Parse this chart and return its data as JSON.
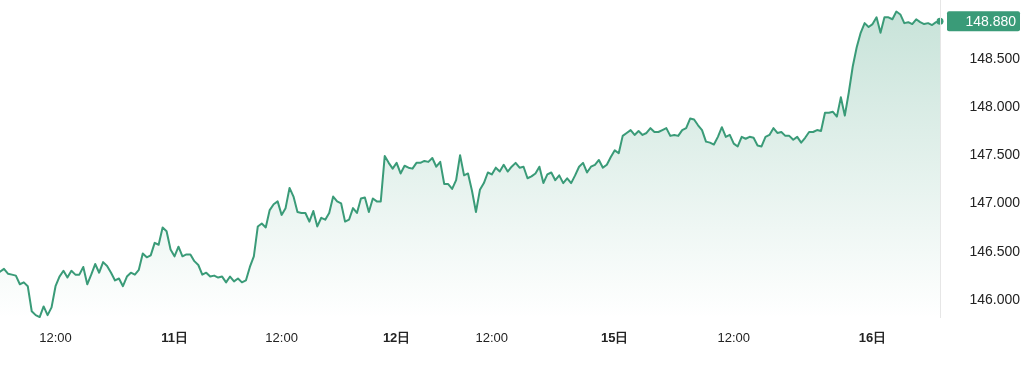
{
  "chart_data": {
    "type": "area",
    "ylim": [
      145.8,
      149.1
    ],
    "categories": [
      null,
      null,
      null,
      null,
      null,
      null,
      null,
      null,
      null,
      null,
      null,
      null,
      null,
      null,
      "12:00",
      null,
      null,
      null,
      null,
      null,
      null,
      null,
      null,
      null,
      null,
      null,
      null,
      null,
      null,
      null,
      null,
      null,
      null,
      null,
      null,
      null,
      null,
      null,
      null,
      null,
      null,
      null,
      null,
      null,
      "11日",
      null,
      null,
      null,
      null,
      null,
      null,
      null,
      null,
      null,
      null,
      null,
      null,
      null,
      null,
      null,
      null,
      null,
      null,
      null,
      null,
      null,
      null,
      null,
      null,
      null,
      null,
      "12:00",
      null,
      null,
      null,
      null,
      null,
      null,
      null,
      null,
      null,
      null,
      null,
      null,
      null,
      null,
      null,
      null,
      null,
      null,
      null,
      null,
      null,
      null,
      null,
      null,
      null,
      null,
      null,
      null,
      "12日",
      null,
      null,
      null,
      null,
      null,
      null,
      null,
      null,
      null,
      null,
      null,
      null,
      null,
      null,
      null,
      null,
      null,
      null,
      null,
      null,
      null,
      null,
      null,
      "12:00",
      null,
      null,
      null,
      null,
      null,
      null,
      null,
      null,
      null,
      null,
      null,
      null,
      null,
      null,
      null,
      null,
      null,
      null,
      null,
      null,
      null,
      null,
      null,
      null,
      null,
      null,
      null,
      null,
      null,
      null,
      "15日",
      null,
      null,
      null,
      null,
      null,
      null,
      null,
      null,
      null,
      null,
      null,
      null,
      null,
      null,
      null,
      null,
      null,
      null,
      null,
      null,
      null,
      null,
      null,
      null,
      null,
      null,
      null,
      null,
      null,
      "12:00",
      null,
      null,
      null,
      null,
      null,
      null,
      null,
      null,
      null,
      null,
      null,
      null,
      null,
      null,
      null,
      null,
      null,
      null,
      null,
      null,
      null,
      null,
      null,
      null,
      null,
      null,
      null,
      null,
      null,
      null,
      null,
      null,
      null,
      null,
      "16日",
      null,
      null,
      null,
      null,
      null,
      null,
      null,
      null,
      null,
      null,
      null,
      null,
      null,
      null,
      null,
      null,
      null
    ],
    "yticks": [
      {
        "value": 146,
        "label": "146.000"
      },
      {
        "value": 146.5,
        "label": "146.500"
      },
      {
        "value": 147,
        "label": "147.000"
      },
      {
        "value": 147.5,
        "label": "147.500"
      },
      {
        "value": 148,
        "label": "148.000"
      },
      {
        "value": 148.5,
        "label": "148.500"
      }
    ],
    "annotations": [
      "148.880"
    ],
    "series": [
      {
        "color": "#3a9b78",
        "values": [
          146.28,
          146.31,
          146.26,
          146.25,
          146.24,
          146.15,
          146.17,
          146.13,
          145.87,
          145.83,
          145.81,
          145.92,
          145.83,
          145.91,
          146.13,
          146.23,
          146.29,
          146.22,
          146.29,
          146.25,
          146.25,
          146.33,
          146.15,
          146.25,
          146.36,
          146.27,
          146.38,
          146.34,
          146.27,
          146.19,
          146.21,
          146.13,
          146.23,
          146.27,
          146.25,
          146.3,
          146.47,
          146.43,
          146.45,
          146.58,
          146.56,
          146.74,
          146.7,
          146.51,
          146.44,
          146.54,
          146.44,
          146.46,
          146.46,
          146.39,
          146.35,
          146.25,
          146.27,
          146.23,
          146.24,
          146.22,
          146.23,
          146.17,
          146.23,
          146.18,
          146.21,
          146.17,
          146.19,
          146.33,
          146.44,
          146.75,
          146.78,
          146.74,
          146.92,
          146.98,
          147.01,
          146.87,
          146.94,
          147.15,
          147.06,
          146.9,
          146.89,
          146.89,
          146.8,
          146.91,
          146.75,
          146.84,
          146.82,
          146.89,
          147.06,
          147.01,
          146.99,
          146.8,
          146.82,
          146.94,
          146.89,
          147.04,
          147.05,
          146.9,
          147.04,
          147.01,
          147.01,
          147.48,
          147.41,
          147.35,
          147.41,
          147.3,
          147.38,
          147.36,
          147.35,
          147.41,
          147.41,
          147.43,
          147.42,
          147.46,
          147.37,
          147.42,
          147.19,
          147.19,
          147.14,
          147.23,
          147.49,
          147.28,
          147.3,
          147.12,
          146.9,
          147.13,
          147.2,
          147.31,
          147.29,
          147.36,
          147.32,
          147.39,
          147.32,
          147.37,
          147.41,
          147.36,
          147.37,
          147.25,
          147.27,
          147.3,
          147.37,
          147.2,
          147.29,
          147.31,
          147.23,
          147.28,
          147.2,
          147.25,
          147.2,
          147.28,
          147.37,
          147.41,
          147.31,
          147.37,
          147.39,
          147.44,
          147.36,
          147.39,
          147.47,
          147.54,
          147.51,
          147.69,
          147.72,
          147.75,
          147.7,
          147.74,
          147.7,
          147.72,
          147.77,
          147.73,
          147.73,
          147.75,
          147.77,
          147.69,
          147.7,
          147.69,
          147.75,
          147.77,
          147.87,
          147.86,
          147.8,
          147.75,
          147.63,
          147.62,
          147.6,
          147.68,
          147.78,
          147.68,
          147.7,
          147.61,
          147.58,
          147.68,
          147.66,
          147.68,
          147.67,
          147.59,
          147.58,
          147.68,
          147.7,
          147.77,
          147.72,
          147.73,
          147.69,
          147.69,
          147.65,
          147.68,
          147.62,
          147.67,
          147.73,
          147.73,
          147.75,
          147.74,
          147.93,
          147.93,
          147.94,
          147.89,
          148.09,
          147.9,
          148.14,
          148.41,
          148.61,
          148.76,
          148.86,
          148.82,
          148.85,
          148.92,
          148.76,
          148.92,
          148.92,
          148.9,
          148.98,
          148.95,
          148.86,
          148.87,
          148.85,
          148.9,
          148.87,
          148.85,
          148.86,
          148.84,
          148.87,
          148.88
        ]
      }
    ]
  }
}
